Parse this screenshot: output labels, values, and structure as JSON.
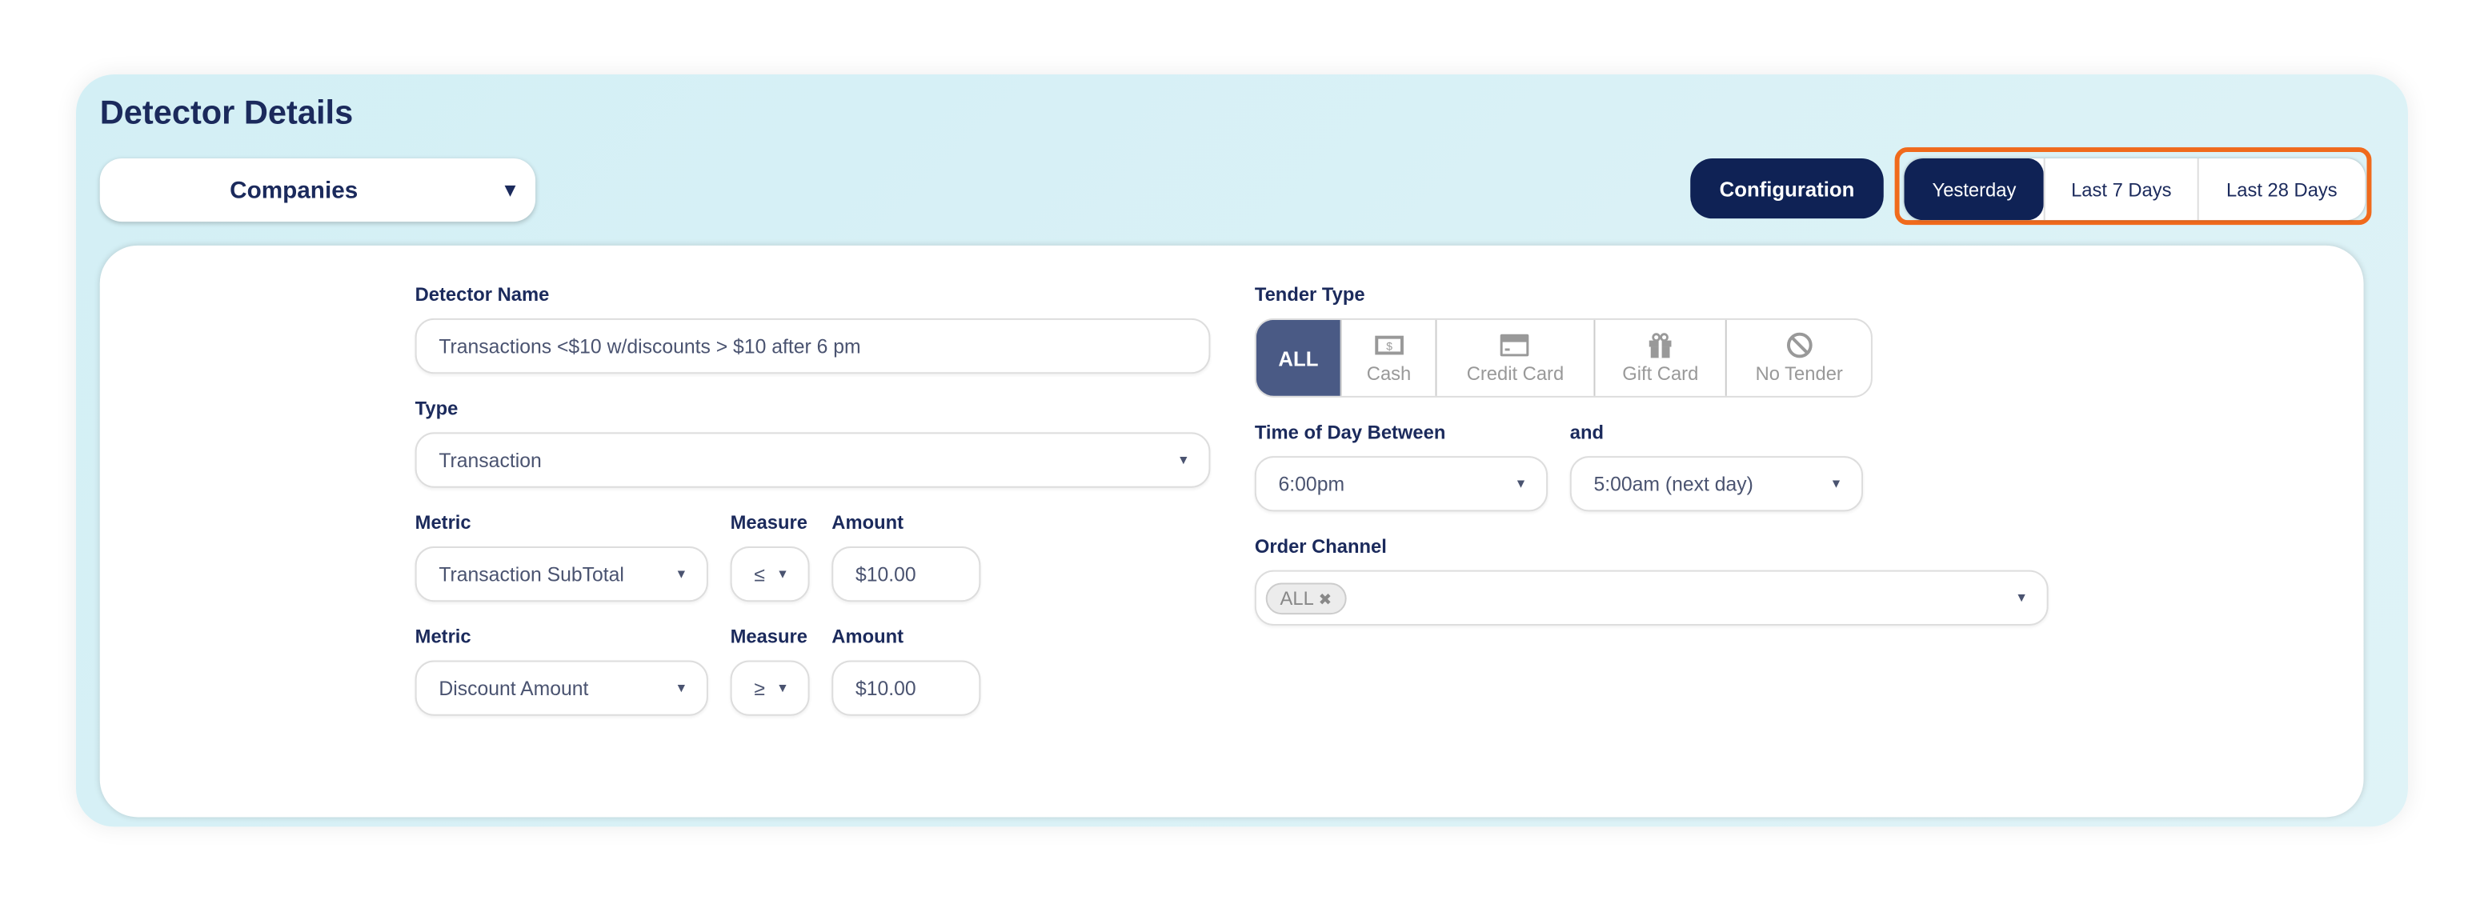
{
  "header": {
    "title": "Detector Details",
    "companies_label": "Companies",
    "configuration_label": "Configuration"
  },
  "date_range": {
    "options": [
      "Yesterday",
      "Last 7 Days",
      "Last 28 Days"
    ],
    "selected": "Yesterday",
    "highlight_color": "#f06a1c"
  },
  "form": {
    "detector_name": {
      "label": "Detector Name",
      "value": "Transactions <$10 w/discounts > $10 after 6 pm"
    },
    "type": {
      "label": "Type",
      "value": "Transaction"
    },
    "rules": [
      {
        "metric_label": "Metric",
        "metric": "Transaction SubTotal",
        "measure_label": "Measure",
        "measure": "≤",
        "amount_label": "Amount",
        "amount": "$10.00"
      },
      {
        "metric_label": "Metric",
        "metric": "Discount Amount",
        "measure_label": "Measure",
        "measure": "≥",
        "amount_label": "Amount",
        "amount": "$10.00"
      }
    ],
    "tender_type": {
      "label": "Tender Type",
      "options": [
        {
          "label": "ALL",
          "icon": "none"
        },
        {
          "label": "Cash",
          "icon": "cash-icon"
        },
        {
          "label": "Credit Card",
          "icon": "credit-card-icon"
        },
        {
          "label": "Gift Card",
          "icon": "gift-icon"
        },
        {
          "label": "No Tender",
          "icon": "ban-icon"
        }
      ],
      "selected": "ALL"
    },
    "time": {
      "label": "Time of Day Between",
      "and_label": "and",
      "start": "6:00pm",
      "end": "5:00am (next day)"
    },
    "order_channel": {
      "label": "Order Channel",
      "chips": [
        "ALL"
      ],
      "chip_remove": "✖"
    }
  },
  "colors": {
    "navy": "#0f2255",
    "accent": "#f06a1c",
    "card_bg": "#d6f0f5"
  }
}
